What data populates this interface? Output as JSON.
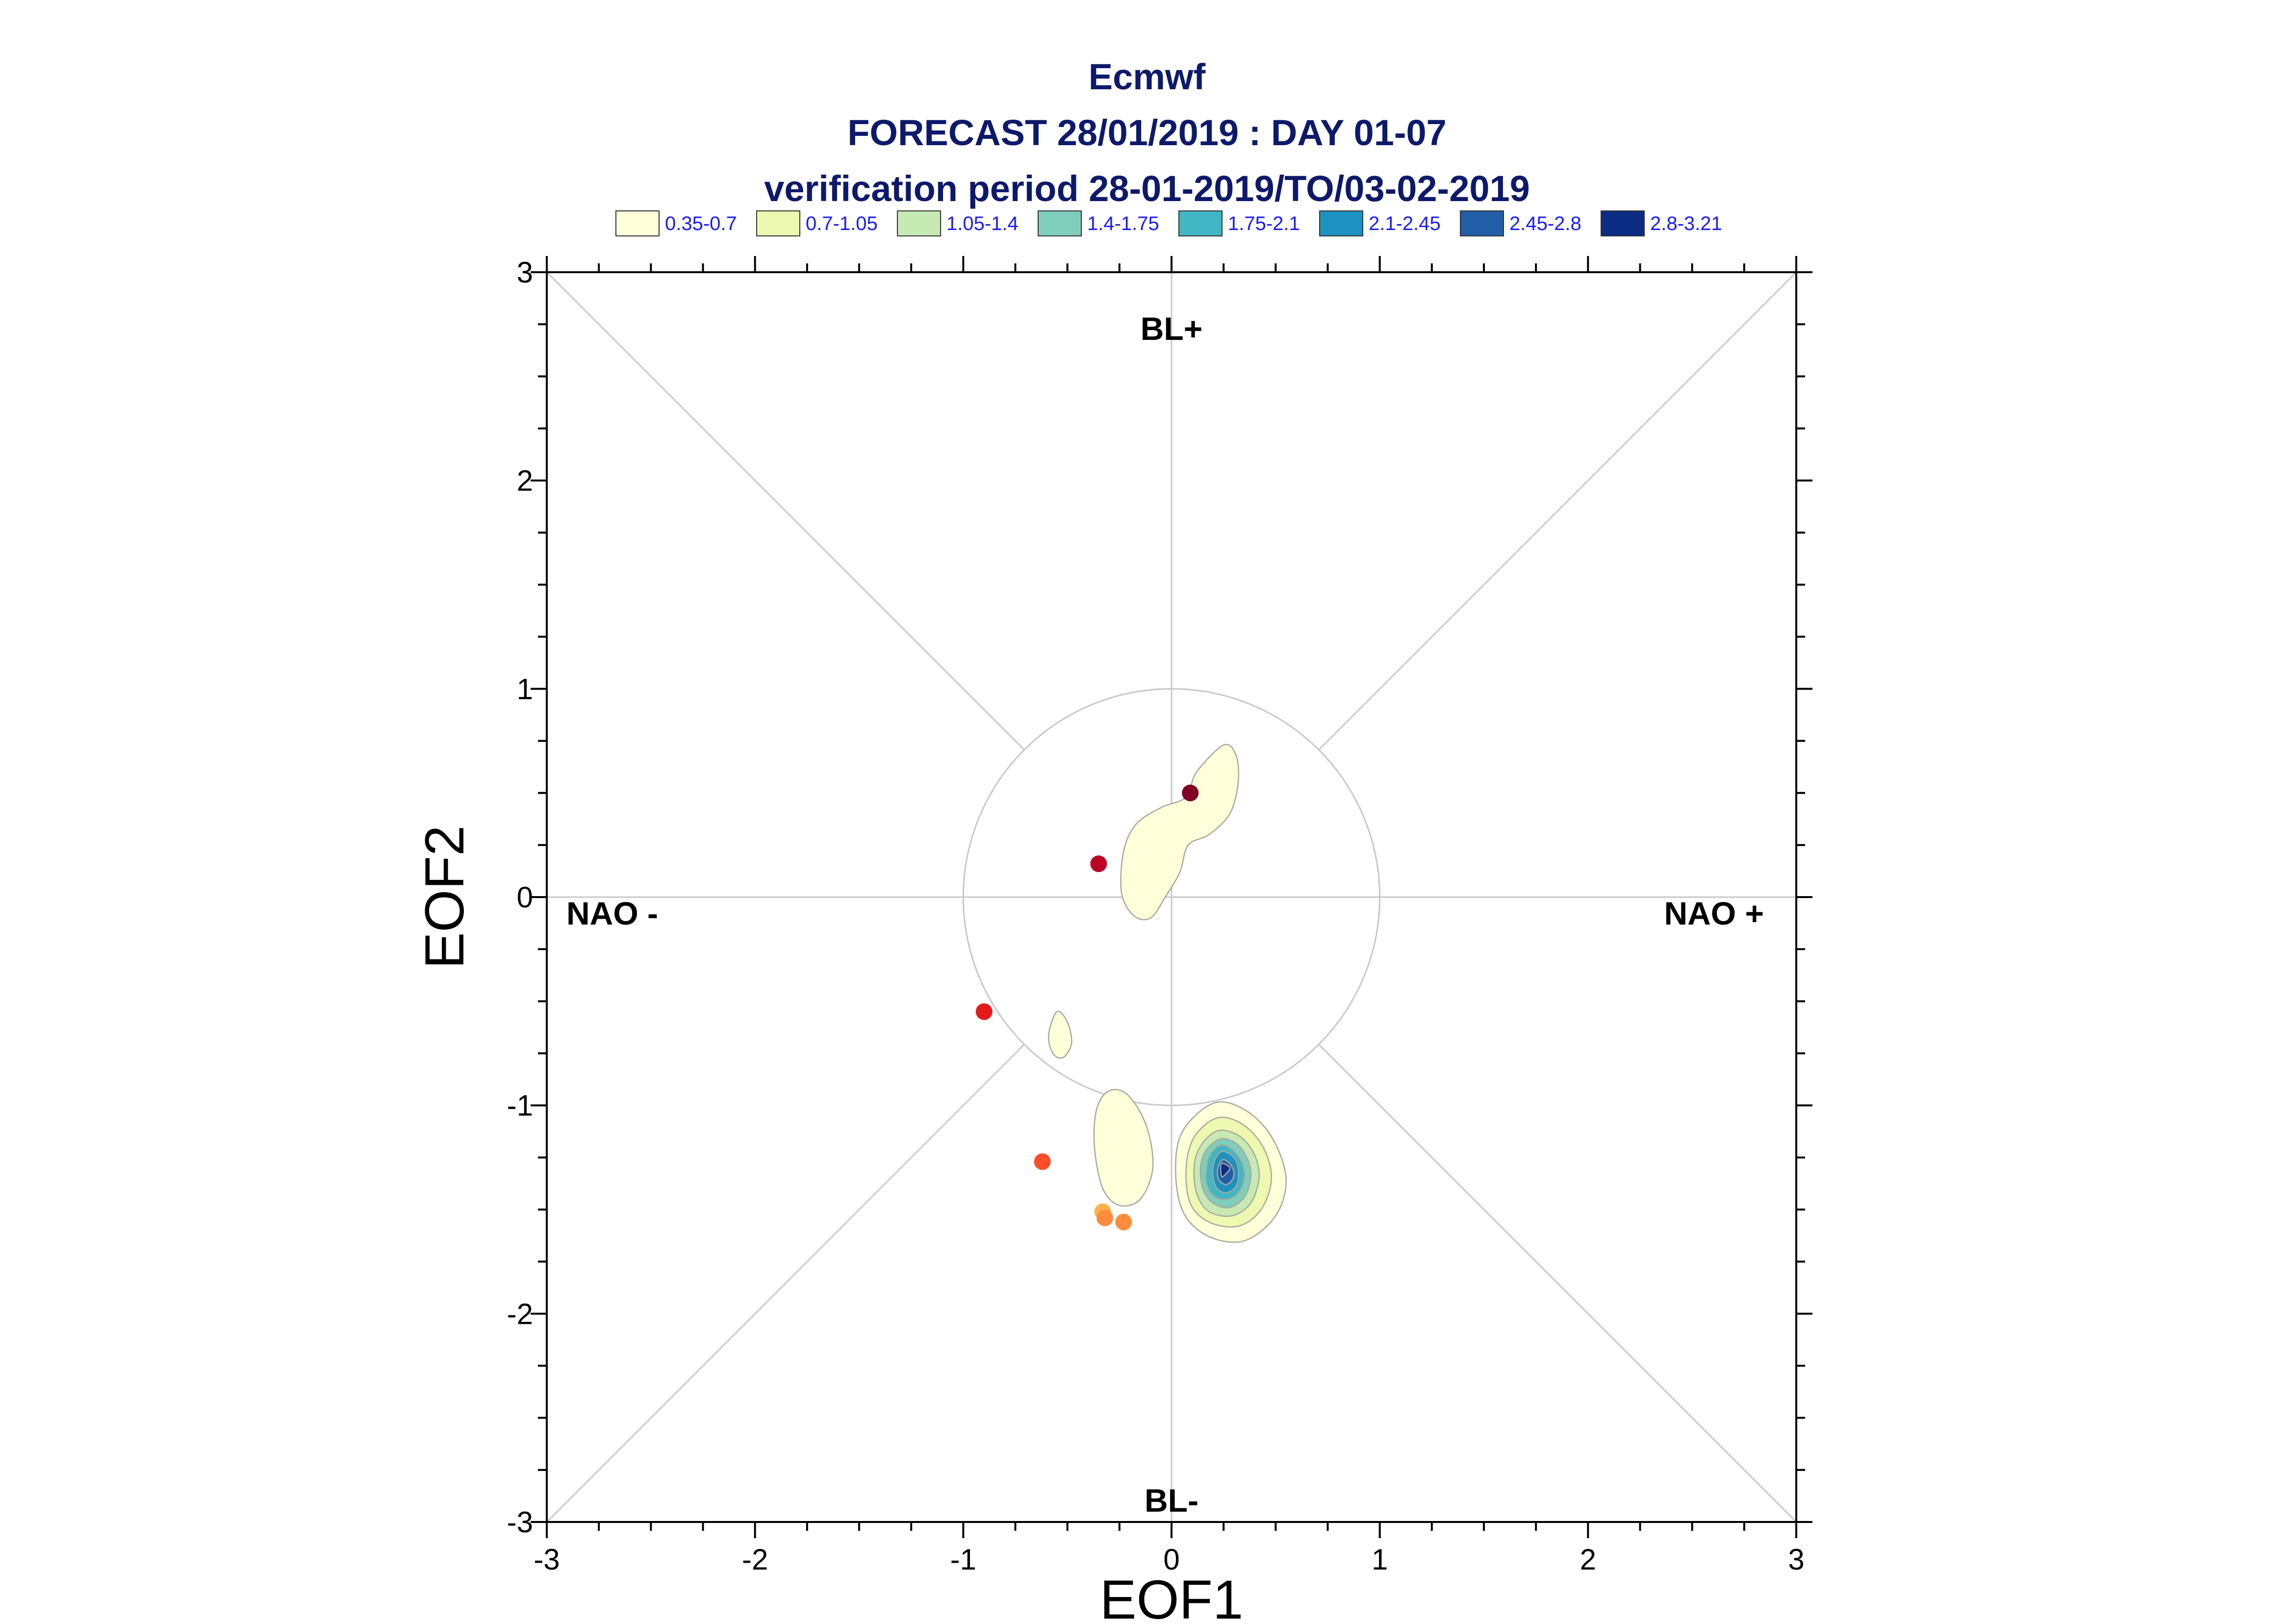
{
  "chart_data": {
    "type": "scatter",
    "title": [
      "Ecmwf",
      "FORECAST 28/01/2019 : DAY 01-07",
      "verification period 28-01-2019/TO/03-02-2019"
    ],
    "xlabel": "EOF1",
    "ylabel": "EOF2",
    "xlim": [
      -3,
      3
    ],
    "ylim": [
      -3,
      3
    ],
    "xticks": [
      "-3",
      "-2",
      "-1",
      "0",
      "1",
      "2",
      "3"
    ],
    "yticks": [
      "3",
      "2",
      "1",
      "0",
      "-1",
      "-2",
      "-3"
    ],
    "grid": false,
    "regime_labels": {
      "top": "BL+",
      "bottom": "BL-",
      "left": "NAO -",
      "right": "NAO +"
    },
    "unit_circle_radius": 1,
    "legend": {
      "placement": "top",
      "entries": [
        {
          "label": "0.35-0.7",
          "color": "#ffffd9"
        },
        {
          "label": "0.7-1.05",
          "color": "#edf8b1"
        },
        {
          "label": "1.05-1.4",
          "color": "#c7e9b4"
        },
        {
          "label": "1.4-1.75",
          "color": "#7fcdbb"
        },
        {
          "label": "1.75-2.1",
          "color": "#41b6c4"
        },
        {
          "label": "2.1-2.45",
          "color": "#1d91c0"
        },
        {
          "label": "2.45-2.8",
          "color": "#225ea8"
        },
        {
          "label": "2.8-3.21",
          "color": "#0c2c84"
        }
      ]
    },
    "points": [
      {
        "x": 0.09,
        "y": 0.5,
        "color": "#800026"
      },
      {
        "x": -0.35,
        "y": 0.16,
        "color": "#bd0026"
      },
      {
        "x": -0.9,
        "y": -0.55,
        "color": "#e31a1c"
      },
      {
        "x": -0.62,
        "y": -1.27,
        "color": "#fc4e2a"
      },
      {
        "x": -0.33,
        "y": -1.51,
        "color": "#feb24c"
      },
      {
        "x": -0.32,
        "y": -1.54,
        "color": "#fd8d3c"
      },
      {
        "x": -0.23,
        "y": -1.56,
        "color": "#fd8d3c"
      }
    ],
    "density_contours": [
      {
        "level": "0.35-0.7",
        "color": "#ffffd9",
        "points": [
          [
            0.25,
            0.73
          ],
          [
            0.31,
            0.68
          ],
          [
            0.32,
            0.55
          ],
          [
            0.28,
            0.4
          ],
          [
            0.18,
            0.3
          ],
          [
            0.08,
            0.25
          ],
          [
            0.04,
            0.12
          ],
          [
            -0.03,
            0.0
          ],
          [
            -0.1,
            -0.1
          ],
          [
            -0.18,
            -0.09
          ],
          [
            -0.24,
            0.02
          ],
          [
            -0.23,
            0.22
          ],
          [
            -0.17,
            0.35
          ],
          [
            -0.05,
            0.43
          ],
          [
            0.07,
            0.48
          ],
          [
            0.12,
            0.6
          ]
        ]
      },
      {
        "level": "0.35-0.7",
        "color": "#ffffd9",
        "points": [
          [
            -0.55,
            -0.55
          ],
          [
            -0.5,
            -0.6
          ],
          [
            -0.48,
            -0.7
          ],
          [
            -0.52,
            -0.77
          ],
          [
            -0.57,
            -0.75
          ],
          [
            -0.59,
            -0.66
          ]
        ]
      },
      {
        "level": "0.35-0.7",
        "color": "#ffffd9",
        "points": [
          [
            -0.3,
            -0.93
          ],
          [
            -0.21,
            -0.95
          ],
          [
            -0.12,
            -1.1
          ],
          [
            -0.09,
            -1.3
          ],
          [
            -0.15,
            -1.45
          ],
          [
            -0.25,
            -1.48
          ],
          [
            -0.33,
            -1.4
          ],
          [
            -0.37,
            -1.2
          ],
          [
            -0.36,
            -1.02
          ]
        ]
      },
      {
        "level": "0.35-0.7",
        "color": "#ffffd9",
        "points": [
          [
            0.2,
            -0.99
          ],
          [
            0.35,
            -1.02
          ],
          [
            0.48,
            -1.15
          ],
          [
            0.55,
            -1.35
          ],
          [
            0.5,
            -1.53
          ],
          [
            0.35,
            -1.65
          ],
          [
            0.18,
            -1.63
          ],
          [
            0.06,
            -1.52
          ],
          [
            0.02,
            -1.33
          ],
          [
            0.05,
            -1.13
          ]
        ]
      },
      {
        "level": "0.7-1.05",
        "color": "#edf8b1",
        "points": [
          [
            0.22,
            -1.06
          ],
          [
            0.34,
            -1.09
          ],
          [
            0.44,
            -1.2
          ],
          [
            0.48,
            -1.35
          ],
          [
            0.43,
            -1.5
          ],
          [
            0.32,
            -1.58
          ],
          [
            0.18,
            -1.56
          ],
          [
            0.09,
            -1.47
          ],
          [
            0.07,
            -1.3
          ],
          [
            0.11,
            -1.15
          ]
        ]
      },
      {
        "level": "1.05-1.4",
        "color": "#c7e9b4",
        "points": [
          [
            0.23,
            -1.12
          ],
          [
            0.33,
            -1.15
          ],
          [
            0.4,
            -1.24
          ],
          [
            0.42,
            -1.35
          ],
          [
            0.38,
            -1.47
          ],
          [
            0.29,
            -1.53
          ],
          [
            0.18,
            -1.51
          ],
          [
            0.12,
            -1.42
          ],
          [
            0.11,
            -1.28
          ],
          [
            0.15,
            -1.18
          ]
        ]
      },
      {
        "level": "1.4-1.75",
        "color": "#7fcdbb",
        "points": [
          [
            0.24,
            -1.16
          ],
          [
            0.32,
            -1.19
          ],
          [
            0.37,
            -1.27
          ],
          [
            0.38,
            -1.35
          ],
          [
            0.35,
            -1.44
          ],
          [
            0.28,
            -1.49
          ],
          [
            0.2,
            -1.47
          ],
          [
            0.15,
            -1.4
          ],
          [
            0.14,
            -1.29
          ],
          [
            0.17,
            -1.21
          ]
        ]
      },
      {
        "level": "1.75-2.1",
        "color": "#41b6c4",
        "points": [
          [
            0.24,
            -1.19
          ],
          [
            0.3,
            -1.22
          ],
          [
            0.34,
            -1.28
          ],
          [
            0.35,
            -1.35
          ],
          [
            0.32,
            -1.42
          ],
          [
            0.27,
            -1.45
          ],
          [
            0.21,
            -1.44
          ],
          [
            0.17,
            -1.38
          ],
          [
            0.17,
            -1.29
          ],
          [
            0.19,
            -1.23
          ]
        ]
      },
      {
        "level": "2.1-2.45",
        "color": "#1d91c0",
        "points": [
          [
            0.25,
            -1.22
          ],
          [
            0.3,
            -1.25
          ],
          [
            0.32,
            -1.3
          ],
          [
            0.32,
            -1.36
          ],
          [
            0.3,
            -1.4
          ],
          [
            0.26,
            -1.42
          ],
          [
            0.22,
            -1.4
          ],
          [
            0.2,
            -1.35
          ],
          [
            0.2,
            -1.29
          ],
          [
            0.22,
            -1.24
          ]
        ]
      },
      {
        "level": "2.45-2.8",
        "color": "#225ea8",
        "points": [
          [
            0.25,
            -1.26
          ],
          [
            0.28,
            -1.28
          ],
          [
            0.3,
            -1.32
          ],
          [
            0.29,
            -1.36
          ],
          [
            0.26,
            -1.38
          ],
          [
            0.23,
            -1.36
          ],
          [
            0.22,
            -1.32
          ],
          [
            0.23,
            -1.28
          ]
        ]
      },
      {
        "level": "2.8-3.21",
        "color": "#0c2c84",
        "points": [
          [
            0.24,
            -1.28
          ],
          [
            0.28,
            -1.3
          ],
          [
            0.26,
            -1.33
          ],
          [
            0.24,
            -1.34
          ]
        ]
      }
    ]
  }
}
